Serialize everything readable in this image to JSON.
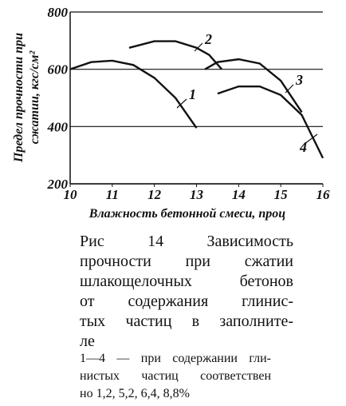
{
  "chart_data": {
    "type": "line",
    "y_label_lines": [
      "Предел прочности при",
      "сжатии, кгс/см²"
    ],
    "x_label": "Влажность бетонной смеси, проц",
    "xlim": [
      10,
      16
    ],
    "xticks": [
      10,
      11,
      12,
      13,
      14,
      15,
      16
    ],
    "ylim": [
      200,
      800
    ],
    "yticks": [
      200,
      400,
      600,
      800
    ],
    "grid": true,
    "series": [
      {
        "name": "1",
        "color": "#111111",
        "x": [
          10,
          10.5,
          11,
          11.5,
          12,
          12.5,
          13
        ],
        "values": [
          600,
          625,
          630,
          615,
          570,
          500,
          395
        ]
      },
      {
        "name": "2",
        "color": "#111111",
        "x": [
          11.4,
          12,
          12.5,
          13,
          13.3,
          13.6
        ],
        "values": [
          675,
          698,
          698,
          675,
          650,
          600
        ]
      },
      {
        "name": "3",
        "color": "#111111",
        "x": [
          13.2,
          13.5,
          14,
          14.5,
          15,
          15.5
        ],
        "values": [
          600,
          625,
          635,
          620,
          560,
          450
        ]
      },
      {
        "name": "4",
        "color": "#111111",
        "x": [
          13.5,
          14,
          14.5,
          15,
          15.5,
          16
        ],
        "values": [
          515,
          540,
          540,
          510,
          440,
          290
        ]
      }
    ]
  },
  "caption": {
    "lines": [
      "Рис 14 Зависимость",
      "прочности при сжатии",
      "шлакощелочных бетонов",
      "от содержания глинис-",
      "тых частиц в заполните-",
      "ле"
    ]
  },
  "note": {
    "lines": [
      "1—4 — при содержании гли-",
      "нистых частиц соответствен",
      "но 1,2, 5,2, 6,4, 8,8%"
    ]
  }
}
